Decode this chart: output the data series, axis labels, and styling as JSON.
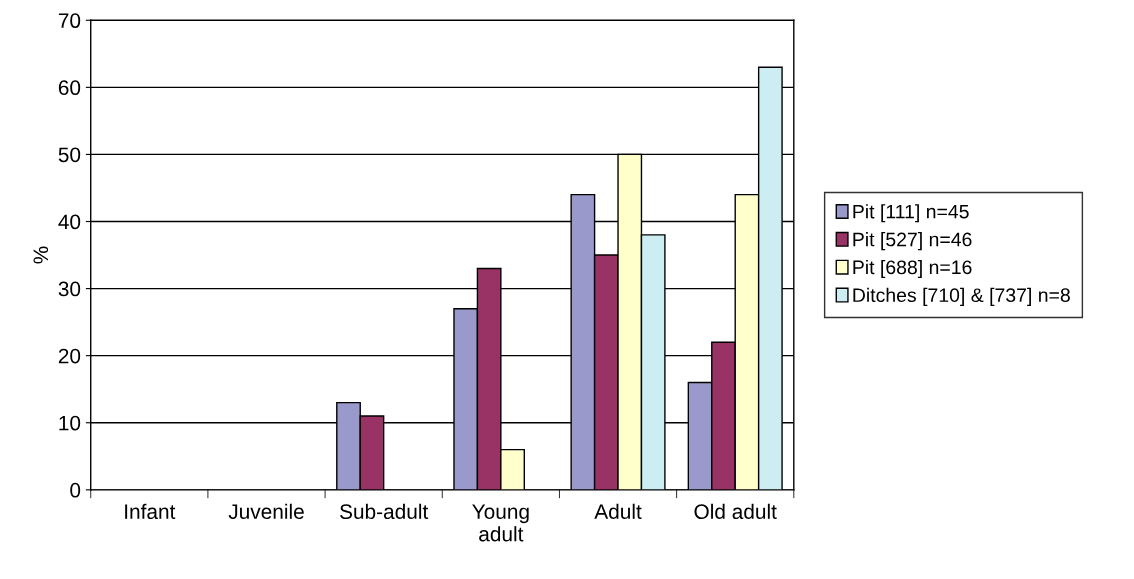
{
  "chart_data": {
    "type": "bar",
    "ylabel": "%",
    "categories": [
      "Infant",
      "Juvenile",
      "Sub-adult",
      "Young\nadult",
      "Adult",
      "Old adult"
    ],
    "series": [
      {
        "name": "Pit [111] n=45",
        "color": "#9999cc",
        "values": [
          0,
          0,
          13,
          27,
          44,
          16
        ]
      },
      {
        "name": "Pit [527] n=46",
        "color": "#993366",
        "values": [
          0,
          0,
          11,
          33,
          35,
          22
        ]
      },
      {
        "name": "Pit [688] n=16",
        "color": "#ffffcc",
        "values": [
          0,
          0,
          0,
          6,
          50,
          44
        ]
      },
      {
        "name": "Ditches [710] & [737] n=8",
        "color": "#cceef2",
        "values": [
          0,
          0,
          0,
          0,
          38,
          63
        ]
      }
    ],
    "ylim": [
      0,
      70
    ],
    "yticks": [
      0,
      10,
      20,
      30,
      40,
      50,
      60,
      70
    ],
    "grid": "y",
    "legend": "right"
  }
}
